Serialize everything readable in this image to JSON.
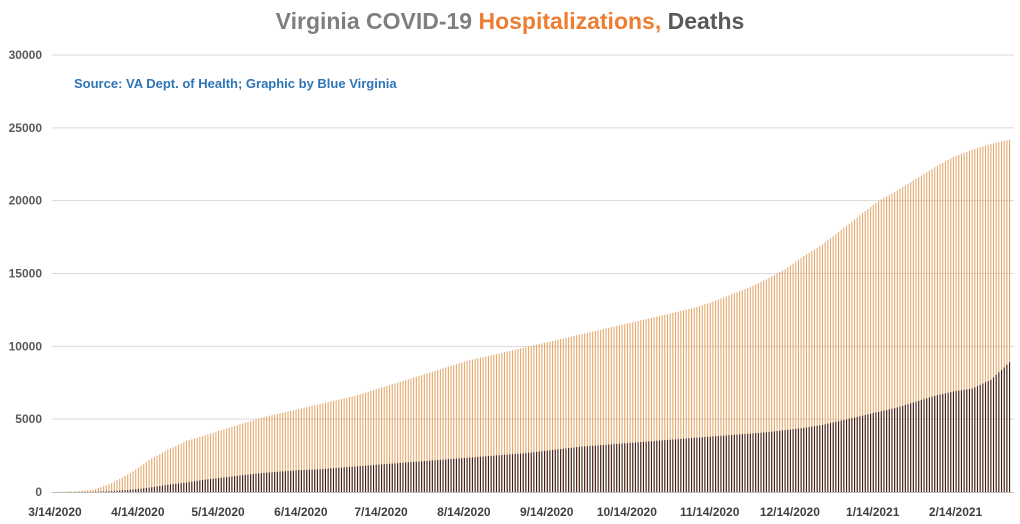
{
  "chart_data": {
    "type": "bar",
    "title": {
      "part1": "Virginia COVID-19",
      "part2": "Hospitalizations,",
      "part3": "Deaths"
    },
    "subtitle": "Source: VA Dept. of Health; Graphic by Blue Virginia",
    "ylim": [
      0,
      30000
    ],
    "yticks": [
      0,
      5000,
      10000,
      15000,
      20000,
      25000,
      30000
    ],
    "xticks": [
      "3/14/2020",
      "4/14/2020",
      "5/14/2020",
      "6/14/2020",
      "7/14/2020",
      "8/14/2020",
      "9/14/2020",
      "10/14/2020",
      "11/14/2020",
      "12/14/2020",
      "1/14/2021",
      "2/14/2021"
    ],
    "x_start": "3/14/2020",
    "x_end": "3/6/2021",
    "grid": true,
    "colors": {
      "hospitalizations": "#e3a86c",
      "deaths": "#3b1c17",
      "grid": "#d9d9d9",
      "axis": "#bfbfbf"
    },
    "series": [
      {
        "name": "Hospitalizations",
        "x": [
          "3/14/2020",
          "3/21/2020",
          "3/28/2020",
          "4/4/2020",
          "4/11/2020",
          "4/18/2020",
          "4/25/2020",
          "5/2/2020",
          "5/9/2020",
          "5/16/2020",
          "5/23/2020",
          "5/30/2020",
          "6/6/2020",
          "6/13/2020",
          "6/20/2020",
          "6/27/2020",
          "7/4/2020",
          "7/11/2020",
          "7/18/2020",
          "7/25/2020",
          "8/1/2020",
          "8/8/2020",
          "8/15/2020",
          "8/22/2020",
          "8/29/2020",
          "9/5/2020",
          "9/12/2020",
          "9/19/2020",
          "9/26/2020",
          "10/3/2020",
          "10/10/2020",
          "10/17/2020",
          "10/24/2020",
          "10/31/2020",
          "11/7/2020",
          "11/14/2020",
          "11/21/2020",
          "11/28/2020",
          "12/5/2020",
          "12/12/2020",
          "12/19/2020",
          "12/26/2020",
          "1/2/2021",
          "1/9/2021",
          "1/16/2021",
          "1/23/2021",
          "1/30/2021",
          "2/6/2021",
          "2/13/2021",
          "2/20/2021",
          "2/27/2021",
          "3/6/2021"
        ],
        "values": [
          10,
          40,
          150,
          600,
          1300,
          2200,
          2900,
          3500,
          3900,
          4300,
          4700,
          5100,
          5400,
          5700,
          6000,
          6300,
          6600,
          7000,
          7400,
          7800,
          8200,
          8600,
          9000,
          9300,
          9600,
          9900,
          10200,
          10500,
          10800,
          11100,
          11400,
          11700,
          12000,
          12300,
          12600,
          13000,
          13500,
          14000,
          14600,
          15300,
          16200,
          17000,
          18000,
          19000,
          20000,
          20700,
          21500,
          22300,
          23000,
          23500,
          23900,
          24200
        ]
      },
      {
        "name": "Deaths",
        "x": [
          "3/14/2020",
          "3/21/2020",
          "3/28/2020",
          "4/4/2020",
          "4/11/2020",
          "4/18/2020",
          "4/25/2020",
          "5/2/2020",
          "5/9/2020",
          "5/16/2020",
          "5/23/2020",
          "5/30/2020",
          "6/6/2020",
          "6/13/2020",
          "6/20/2020",
          "6/27/2020",
          "7/4/2020",
          "7/11/2020",
          "7/18/2020",
          "7/25/2020",
          "8/1/2020",
          "8/8/2020",
          "8/15/2020",
          "8/22/2020",
          "8/29/2020",
          "9/5/2020",
          "9/12/2020",
          "9/19/2020",
          "9/26/2020",
          "10/3/2020",
          "10/10/2020",
          "10/17/2020",
          "10/24/2020",
          "10/31/2020",
          "11/7/2020",
          "11/14/2020",
          "11/21/2020",
          "11/28/2020",
          "12/5/2020",
          "12/12/2020",
          "12/19/2020",
          "12/26/2020",
          "1/2/2021",
          "1/9/2021",
          "1/16/2021",
          "1/23/2021",
          "1/30/2021",
          "2/6/2021",
          "2/13/2021",
          "2/20/2021",
          "2/27/2021",
          "3/6/2021"
        ],
        "values": [
          0,
          5,
          20,
          60,
          150,
          300,
          500,
          650,
          850,
          1000,
          1150,
          1300,
          1400,
          1500,
          1550,
          1650,
          1750,
          1850,
          1950,
          2050,
          2150,
          2250,
          2350,
          2450,
          2550,
          2650,
          2800,
          2950,
          3100,
          3200,
          3300,
          3400,
          3500,
          3600,
          3700,
          3800,
          3900,
          4000,
          4100,
          4250,
          4400,
          4600,
          4900,
          5200,
          5500,
          5800,
          6200,
          6600,
          6900,
          7100,
          7700,
          8900
        ]
      }
    ]
  }
}
